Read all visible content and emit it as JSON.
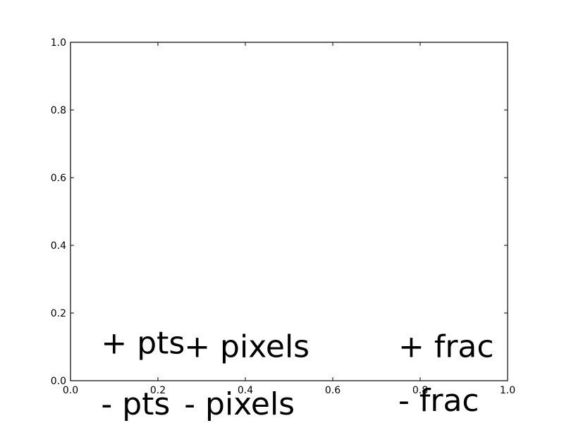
{
  "chart_data": {
    "type": "scatter",
    "title": "",
    "xlabel": "",
    "ylabel": "",
    "xlim": [
      0.0,
      1.0
    ],
    "ylim": [
      0.0,
      1.0
    ],
    "grid": false,
    "xticks": [
      "0.0",
      "0.2",
      "0.4",
      "0.6",
      "0.8",
      "1.0"
    ],
    "yticks": [
      "0.0",
      "0.2",
      "0.4",
      "0.6",
      "0.8",
      "1.0"
    ],
    "series": [],
    "annotations": [
      {
        "text": "+ pts",
        "x": 0.07,
        "y": 0.08
      },
      {
        "text": "+ pixels",
        "x": 0.26,
        "y": 0.07
      },
      {
        "text": "+ frac",
        "x": 0.75,
        "y": 0.07
      },
      {
        "text": "- pts",
        "x": 0.07,
        "y": -0.1
      },
      {
        "text": "- pixels",
        "x": 0.26,
        "y": -0.1
      },
      {
        "text": "- frac",
        "x": 0.75,
        "y": -0.09
      }
    ]
  }
}
